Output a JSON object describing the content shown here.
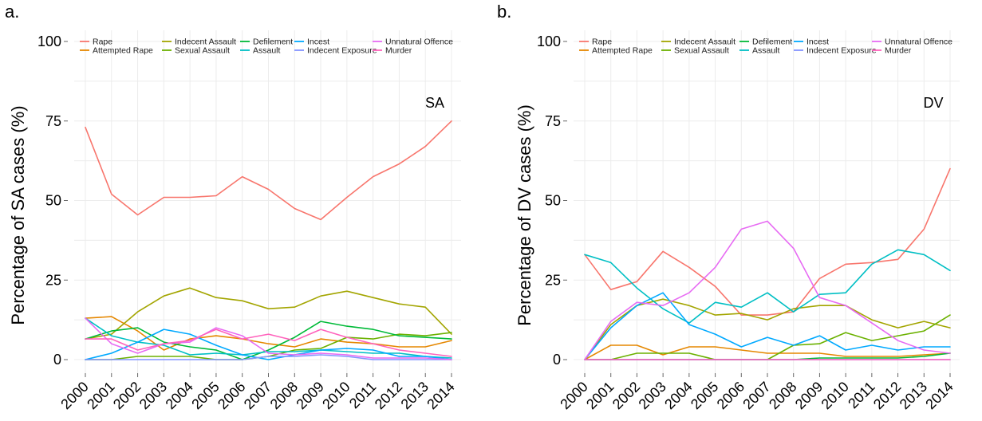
{
  "chart_data": [
    {
      "type": "line",
      "panel_label": "a.",
      "annotation": "SA",
      "ylabel": "Percentage of SA cases (%)",
      "xlabel": "",
      "ylim": [
        0,
        100
      ],
      "yticks": [
        "0",
        "25",
        "50",
        "75",
        "100"
      ],
      "ytick_values": [
        0,
        25,
        50,
        75,
        100
      ],
      "x": [
        "2000",
        "2001",
        "2002",
        "2003",
        "2004",
        "2005",
        "2006",
        "2007",
        "2008",
        "2009",
        "2010",
        "2011",
        "2012",
        "2013",
        "2014"
      ],
      "grid": true,
      "legend_position": "top",
      "series": [
        {
          "name": "Rape",
          "color": "#F8766D",
          "values": [
            73,
            52,
            45.5,
            51,
            51,
            51.5,
            57.5,
            53.5,
            47.5,
            44,
            51,
            57.5,
            61.5,
            67,
            75
          ]
        },
        {
          "name": "Attempted Rape",
          "color": "#E58700",
          "values": [
            13,
            13.5,
            9,
            3,
            6.5,
            7.5,
            6.5,
            5,
            4,
            6.5,
            5.5,
            5,
            4,
            4,
            6
          ]
        },
        {
          "name": "Indecent Assault",
          "color": "#A3A500",
          "values": [
            6.5,
            8,
            15,
            20,
            22.5,
            19.5,
            18.5,
            16,
            16.5,
            20,
            21.5,
            19.5,
            17.5,
            16.5,
            8
          ]
        },
        {
          "name": "Sexual Assault",
          "color": "#6BB100",
          "values": [
            0,
            0,
            1,
            1,
            1,
            0,
            0,
            1,
            3,
            3.5,
            7,
            6.5,
            8,
            7.5,
            8.5
          ]
        },
        {
          "name": "Defilement",
          "color": "#00BA38",
          "values": [
            6.5,
            9,
            10,
            5.5,
            4,
            3,
            0,
            3,
            7,
            12,
            10.5,
            9.5,
            7.5,
            7,
            6.5
          ]
        },
        {
          "name": "Assault",
          "color": "#00BFC4",
          "values": [
            13,
            7.5,
            5.5,
            4.5,
            1.5,
            2,
            1.5,
            2.5,
            2.5,
            3,
            2.5,
            2,
            2,
            1,
            0.5
          ]
        },
        {
          "name": "Incest",
          "color": "#00A9FF",
          "values": [
            0,
            2,
            5.5,
            9.5,
            8,
            4.5,
            1.5,
            0,
            1.5,
            3,
            3.5,
            3,
            1,
            1,
            0
          ]
        },
        {
          "name": "Indecent Exposure",
          "color": "#8494FF",
          "values": [
            0,
            0,
            0,
            0,
            0,
            0,
            0,
            1,
            1,
            1.5,
            1,
            0,
            0,
            0,
            0
          ]
        },
        {
          "name": "Unnatural Offence",
          "color": "#E76BF3",
          "values": [
            13,
            5,
            2,
            5,
            5.5,
            10,
            7.5,
            2,
            1.5,
            2,
            1.5,
            0.5,
            0.5,
            0.5,
            0
          ]
        },
        {
          "name": "Murder",
          "color": "#FF62BC",
          "values": [
            6.5,
            6.5,
            3,
            5,
            6,
            9.5,
            6.5,
            8,
            6,
            9.5,
            7,
            5,
            3,
            2,
            1
          ]
        }
      ]
    },
    {
      "type": "line",
      "panel_label": "b.",
      "annotation": "DV",
      "ylabel": "Percentage of DV cases (%)",
      "xlabel": "",
      "ylim": [
        0,
        100
      ],
      "yticks": [
        "0",
        "25",
        "50",
        "75",
        "100"
      ],
      "ytick_values": [
        0,
        25,
        50,
        75,
        100
      ],
      "x": [
        "2000",
        "2001",
        "2002",
        "2003",
        "2004",
        "2005",
        "2006",
        "2007",
        "2008",
        "2009",
        "2010",
        "2011",
        "2012",
        "2013",
        "2014"
      ],
      "grid": true,
      "legend_position": "top",
      "series": [
        {
          "name": "Rape",
          "color": "#F8766D",
          "values": [
            33,
            22,
            24.5,
            34,
            29,
            23,
            14,
            14,
            15,
            25.5,
            30,
            30.5,
            31.5,
            41,
            60
          ]
        },
        {
          "name": "Attempted Rape",
          "color": "#E58700",
          "values": [
            0,
            4.5,
            4.5,
            1.5,
            4,
            4,
            3,
            2,
            2,
            2,
            1,
            1,
            1,
            1.5,
            2
          ]
        },
        {
          "name": "Indecent Assault",
          "color": "#A3A500",
          "values": [
            0,
            11,
            17,
            19,
            17,
            14,
            14.5,
            12.5,
            16,
            17,
            17,
            12.5,
            10,
            12,
            10
          ]
        },
        {
          "name": "Sexual Assault",
          "color": "#6BB100",
          "values": [
            0,
            0,
            2,
            2,
            2,
            0,
            0,
            0,
            4.5,
            5,
            8.5,
            6,
            7.5,
            9,
            14
          ]
        },
        {
          "name": "Defilement",
          "color": "#00BA38",
          "values": [
            0,
            0,
            0,
            0,
            0,
            0,
            0,
            0,
            0,
            0.5,
            0.5,
            0.5,
            0.5,
            1,
            2
          ]
        },
        {
          "name": "Assault",
          "color": "#00BFC4",
          "values": [
            33,
            30.5,
            22.5,
            16,
            11.5,
            18,
            16.5,
            21,
            15,
            20.5,
            21,
            30,
            34.5,
            33,
            28
          ]
        },
        {
          "name": "Incest",
          "color": "#00A9FF",
          "values": [
            0,
            10,
            17,
            21,
            11,
            8,
            4,
            7,
            4.5,
            7.5,
            3,
            4.5,
            3,
            4,
            4
          ]
        },
        {
          "name": "Indecent Exposure",
          "color": "#8494FF",
          "values": [
            0,
            0,
            0,
            0,
            0,
            0,
            0,
            0,
            0,
            0,
            0,
            0,
            0,
            0,
            0
          ]
        },
        {
          "name": "Unnatural Offence",
          "color": "#E76BF3",
          "values": [
            0,
            12,
            18,
            17,
            21,
            29,
            41,
            43.5,
            35,
            19.5,
            17,
            11.5,
            6,
            3,
            2
          ]
        },
        {
          "name": "Murder",
          "color": "#FF62BC",
          "values": [
            0,
            0,
            0,
            0,
            0,
            0,
            0,
            0,
            0,
            0,
            0,
            0,
            0,
            0,
            0
          ]
        }
      ]
    }
  ]
}
